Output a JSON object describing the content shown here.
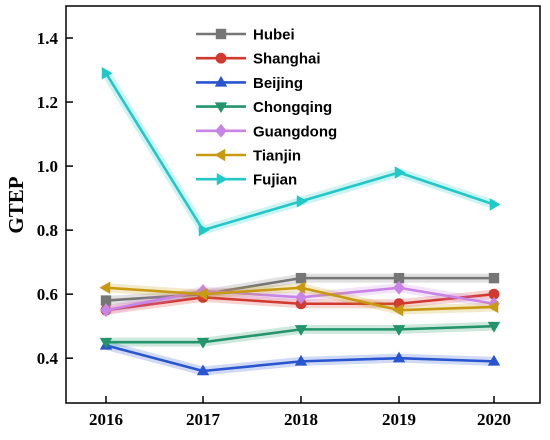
{
  "chart_data": {
    "type": "line",
    "title": "",
    "xlabel": "",
    "ylabel": "GTEP",
    "x": [
      "2016",
      "2017",
      "2018",
      "2019",
      "2020"
    ],
    "ylim": [
      0.26,
      1.5
    ],
    "yticks": [
      "0.4",
      "0.6",
      "0.8",
      "1.0",
      "1.2",
      "1.4"
    ],
    "ytick_values": [
      0.4,
      0.6,
      0.8,
      1.0,
      1.2,
      1.4
    ],
    "grid": false,
    "legend_position": "top-center",
    "series": [
      {
        "name": "Hubei",
        "values": [
          0.58,
          0.6,
          0.65,
          0.65,
          0.65
        ],
        "color": "#767676",
        "marker": "square"
      },
      {
        "name": "Shanghai",
        "values": [
          0.55,
          0.59,
          0.57,
          0.57,
          0.6
        ],
        "color": "#d03a30",
        "marker": "circle"
      },
      {
        "name": "Beijing",
        "values": [
          0.44,
          0.36,
          0.39,
          0.4,
          0.39
        ],
        "color": "#2a55d0",
        "marker": "triangle-up"
      },
      {
        "name": "Chongqing",
        "values": [
          0.45,
          0.45,
          0.49,
          0.49,
          0.5
        ],
        "color": "#23946b",
        "marker": "triangle-down"
      },
      {
        "name": "Guangdong",
        "values": [
          0.55,
          0.61,
          0.59,
          0.62,
          0.57
        ],
        "color": "#c884e6",
        "marker": "diamond"
      },
      {
        "name": "Tianjin",
        "values": [
          0.62,
          0.6,
          0.62,
          0.55,
          0.56
        ],
        "color": "#c89a12",
        "marker": "triangle-left"
      },
      {
        "name": "Fujian",
        "values": [
          1.29,
          0.8,
          0.89,
          0.98,
          0.88
        ],
        "color": "#22c8c8",
        "marker": "triangle-right"
      }
    ]
  }
}
